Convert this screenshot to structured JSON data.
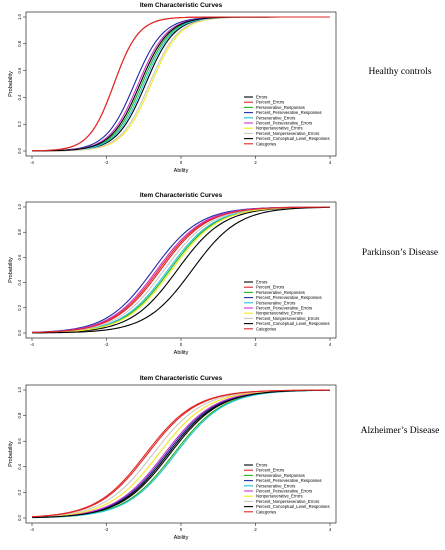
{
  "chart_data": [
    {
      "type": "line",
      "title": "Item Characteristic Curves",
      "xlabel": "Ability",
      "ylabel": "Probability",
      "xlim": [
        -4,
        4
      ],
      "ylim": [
        0,
        1
      ],
      "xticks": [
        "-4",
        "-2",
        "0",
        "2",
        "4"
      ],
      "yticks": [
        "0.0",
        "0.2",
        "0.4",
        "0.6",
        "0.8",
        "1.0"
      ],
      "side_label": "Healthy controls",
      "legend_position": "bottom-right",
      "series": [
        {
          "name": "Errors",
          "color": "#000000",
          "b": -0.95,
          "a": 2.6
        },
        {
          "name": "Percent_Errors",
          "color": "#e32626",
          "b": -1.8,
          "a": 3.0
        },
        {
          "name": "Perseverative_Responses",
          "color": "#22b022",
          "b": -1.05,
          "a": 2.6
        },
        {
          "name": "Percent_Perseverative_Responses",
          "color": "#1f2a9e",
          "b": -1.25,
          "a": 2.6
        },
        {
          "name": "Perseverative_Errors",
          "color": "#22c4d6",
          "b": -1.0,
          "a": 2.6
        },
        {
          "name": "Percent_Perseverative_Errors",
          "color": "#cc33cc",
          "b": -1.15,
          "a": 2.6
        },
        {
          "name": "Nonperseverative_Errors",
          "color": "#f2e81e",
          "b": -0.8,
          "a": 2.6
        },
        {
          "name": "Percent_Nonperseverative_Errors",
          "color": "#c8c8c8",
          "b": -0.85,
          "a": 2.6
        },
        {
          "name": "Percent_Conceptual_Level_Responses",
          "color": "#000000",
          "b": -1.1,
          "a": 2.6
        },
        {
          "name": "Categories",
          "color": "#e32626",
          "b": -1.8,
          "a": 3.0
        }
      ]
    },
    {
      "type": "line",
      "title": "Item Characteristic Curves",
      "xlabel": "Ability",
      "ylabel": "Probability",
      "xlim": [
        -4,
        4
      ],
      "ylim": [
        0,
        1
      ],
      "xticks": [
        "-4",
        "-2",
        "0",
        "2",
        "4"
      ],
      "yticks": [
        "0.0",
        "0.2",
        "0.4",
        "0.6",
        "0.8",
        "1.0"
      ],
      "side_label": "Parkinson’s Disease",
      "legend_position": "bottom-right",
      "series": [
        {
          "name": "Errors",
          "color": "#000000",
          "b": -0.1,
          "a": 1.6
        },
        {
          "name": "Percent_Errors",
          "color": "#e32626",
          "b": -0.6,
          "a": 1.6
        },
        {
          "name": "Perseverative_Responses",
          "color": "#22b022",
          "b": -0.3,
          "a": 1.6
        },
        {
          "name": "Percent_Perseverative_Responses",
          "color": "#1f2a9e",
          "b": -0.75,
          "a": 1.6
        },
        {
          "name": "Perseverative_Errors",
          "color": "#22c4d6",
          "b": -0.35,
          "a": 1.6
        },
        {
          "name": "Percent_Perseverative_Errors",
          "color": "#cc33cc",
          "b": -0.65,
          "a": 1.6
        },
        {
          "name": "Nonperseverative_Errors",
          "color": "#f2e81e",
          "b": -0.25,
          "a": 1.6
        },
        {
          "name": "Percent_Nonperseverative_Errors",
          "color": "#c8c8c8",
          "b": -0.45,
          "a": 1.6
        },
        {
          "name": "Percent_Conceptual_Level_Responses",
          "color": "#000000",
          "b": 0.3,
          "a": 1.6
        },
        {
          "name": "Categories",
          "color": "#e32626",
          "b": -0.55,
          "a": 1.6
        }
      ]
    },
    {
      "type": "line",
      "title": "Item Characteristic Curves",
      "xlabel": "Ability",
      "ylabel": "Probability",
      "xlim": [
        -4,
        4
      ],
      "ylim": [
        0,
        1
      ],
      "xticks": [
        "-4",
        "-2",
        "0",
        "2",
        "4"
      ],
      "yticks": [
        "0.0",
        "0.2",
        "0.4",
        "0.6",
        "0.8",
        "1.0"
      ],
      "side_label": "Alzheimer’s Disease",
      "legend_position": "bottom-right",
      "series": [
        {
          "name": "Errors",
          "color": "#000000",
          "b": -0.35,
          "a": 1.5
        },
        {
          "name": "Percent_Errors",
          "color": "#e32626",
          "b": -0.95,
          "a": 1.5
        },
        {
          "name": "Perseverative_Responses",
          "color": "#22b022",
          "b": -0.2,
          "a": 1.5
        },
        {
          "name": "Percent_Perseverative_Responses",
          "color": "#1f2a9e",
          "b": -0.4,
          "a": 1.5
        },
        {
          "name": "Perseverative_Errors",
          "color": "#22c4d6",
          "b": -0.15,
          "a": 1.5
        },
        {
          "name": "Percent_Perseverative_Errors",
          "color": "#cc33cc",
          "b": -0.45,
          "a": 1.5
        },
        {
          "name": "Nonperseverative_Errors",
          "color": "#f2e81e",
          "b": -0.6,
          "a": 1.5
        },
        {
          "name": "Percent_Nonperseverative_Errors",
          "color": "#c8c8c8",
          "b": -0.75,
          "a": 1.5
        },
        {
          "name": "Percent_Conceptual_Level_Responses",
          "color": "#000000",
          "b": -0.3,
          "a": 1.5
        },
        {
          "name": "Categories",
          "color": "#e32626",
          "b": -0.9,
          "a": 1.5
        }
      ]
    }
  ]
}
